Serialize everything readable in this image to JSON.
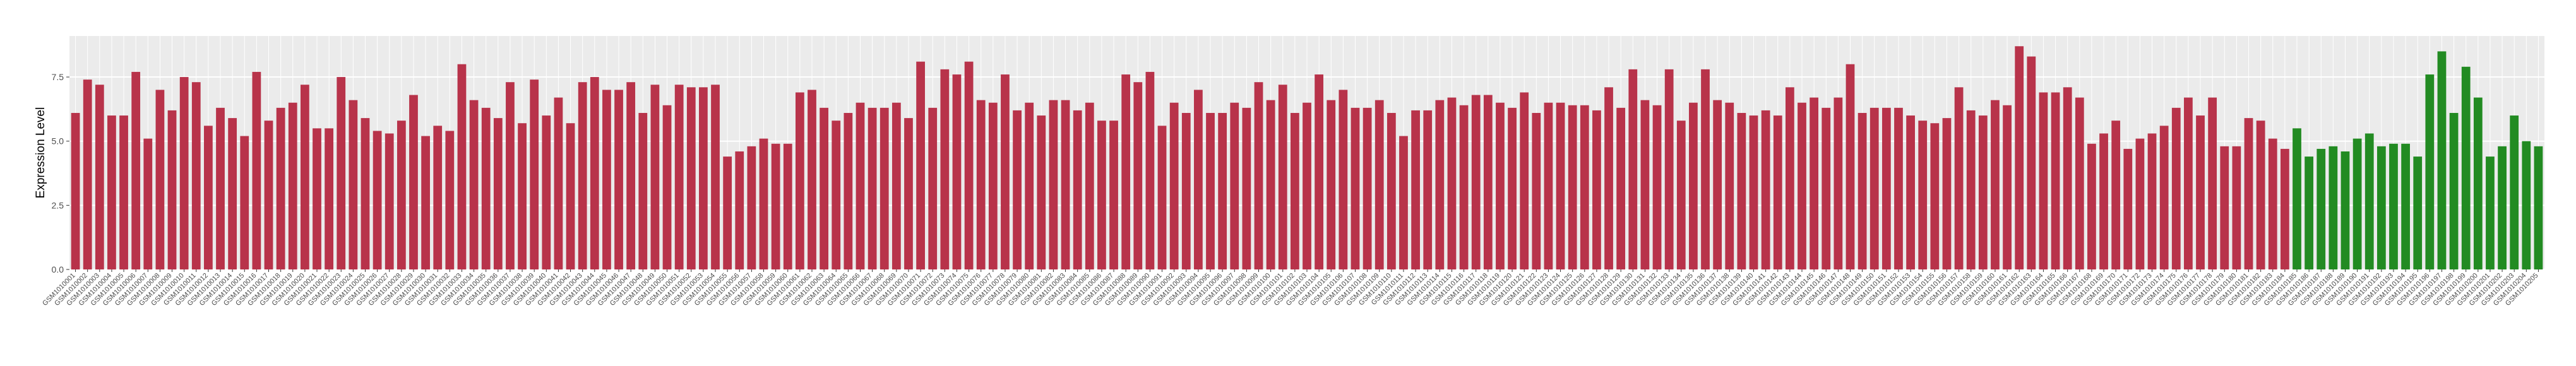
{
  "chart_data": {
    "type": "bar",
    "y_label": "Expression Level",
    "ylim": [
      0,
      9.1
    ],
    "yticks": [
      {
        "value": 0,
        "label": "0.0"
      },
      2.5,
      {
        "value": 5,
        "label": "5.0"
      },
      7.5
    ],
    "grid": true,
    "panel_color": "#ebebeb",
    "categories": [
      "GSM1010001",
      "GSM1010002",
      "GSM1010003",
      "GSM1010004",
      "GSM1010005",
      "GSM1010006",
      "GSM1010007",
      "GSM1010008",
      "GSM1010009",
      "GSM1010010",
      "GSM1010011",
      "GSM1010012",
      "GSM1010013",
      "GSM1010014",
      "GSM1010015",
      "GSM1010016",
      "GSM1010017",
      "GSM1010018",
      "GSM1010019",
      "GSM1010020",
      "GSM1010021",
      "GSM1010022",
      "GSM1010023",
      "GSM1010024",
      "GSM1010025",
      "GSM1010026",
      "GSM1010027",
      "GSM1010028",
      "GSM1010029",
      "GSM1010030",
      "GSM1010031",
      "GSM1010032",
      "GSM1010033",
      "GSM1010034",
      "GSM1010035",
      "GSM1010036",
      "GSM1010037",
      "GSM1010038",
      "GSM1010039",
      "GSM1010040",
      "GSM1010041",
      "GSM1010042",
      "GSM1010043",
      "GSM1010044",
      "GSM1010045",
      "GSM1010046",
      "GSM1010047",
      "GSM1010048",
      "GSM1010049",
      "GSM1010050",
      "GSM1010051",
      "GSM1010052",
      "GSM1010053",
      "GSM1010054",
      "GSM1010055",
      "GSM1010056",
      "GSM1010057",
      "GSM1010058",
      "GSM1010059",
      "GSM1010060",
      "GSM1010061",
      "GSM1010062",
      "GSM1010063",
      "GSM1010064",
      "GSM1010065",
      "GSM1010066",
      "GSM1010067",
      "GSM1010068",
      "GSM1010069",
      "GSM1010070",
      "GSM1010071",
      "GSM1010072",
      "GSM1010073",
      "GSM1010074",
      "GSM1010075",
      "GSM1010076",
      "GSM1010077",
      "GSM1010078",
      "GSM1010079",
      "GSM1010080",
      "GSM1010081",
      "GSM1010082",
      "GSM1010083",
      "GSM1010084",
      "GSM1010085",
      "GSM1010086",
      "GSM1010087",
      "GSM1010088",
      "GSM1010089",
      "GSM1010090",
      "GSM1010091",
      "GSM1010092",
      "GSM1010093",
      "GSM1010094",
      "GSM1010095",
      "GSM1010096",
      "GSM1010097",
      "GSM1010098",
      "GSM1010099",
      "GSM1010100",
      "GSM1010101",
      "GSM1010102",
      "GSM1010103",
      "GSM1010104",
      "GSM1010105",
      "GSM1010106",
      "GSM1010107",
      "GSM1010108",
      "GSM1010109",
      "GSM1010110",
      "GSM1010111",
      "GSM1010112",
      "GSM1010113",
      "GSM1010114",
      "GSM1010115",
      "GSM1010116",
      "GSM1010117",
      "GSM1010118",
      "GSM1010119",
      "GSM1010120",
      "GSM1010121",
      "GSM1010122",
      "GSM1010123",
      "GSM1010124",
      "GSM1010125",
      "GSM1010126",
      "GSM1010127",
      "GSM1010128",
      "GSM1010129",
      "GSM1010130",
      "GSM1010131",
      "GSM1010132",
      "GSM1010133",
      "GSM1010134",
      "GSM1010135",
      "GSM1010136",
      "GSM1010137",
      "GSM1010138",
      "GSM1010139",
      "GSM1010140",
      "GSM1010141",
      "GSM1010142",
      "GSM1010143",
      "GSM1010144",
      "GSM1010145",
      "GSM1010146",
      "GSM1010147",
      "GSM1010148",
      "GSM1010149",
      "GSM1010150",
      "GSM1010151",
      "GSM1010152",
      "GSM1010153",
      "GSM1010154",
      "GSM1010155",
      "GSM1010156",
      "GSM1010157",
      "GSM1010158",
      "GSM1010159",
      "GSM1010160",
      "GSM1010161",
      "GSM1010162",
      "GSM1010163",
      "GSM1010164",
      "GSM1010165",
      "GSM1010166",
      "GSM1010167",
      "GSM1010168",
      "GSM1010169",
      "GSM1010170",
      "GSM1010171",
      "GSM1010172",
      "GSM1010173",
      "GSM1010174",
      "GSM1010175",
      "GSM1010176",
      "GSM1010177",
      "GSM1010178",
      "GSM1010179",
      "GSM1010180",
      "GSM1010181",
      "GSM1010182",
      "GSM1010183",
      "GSM1010184",
      "GSM1010185",
      "GSM1010186",
      "GSM1010187",
      "GSM1010188",
      "GSM1010189",
      "GSM1010190",
      "GSM1010191",
      "GSM1010192",
      "GSM1010193",
      "GSM1010194",
      "GSM1010195",
      "GSM1010196",
      "GSM1010197",
      "GSM1010198",
      "GSM1010199",
      "GSM1010200",
      "GSM1010201",
      "GSM1010202",
      "GSM1010203",
      "GSM1010204",
      "GSM1010205"
    ],
    "values": [
      6.1,
      7.4,
      7.2,
      6.0,
      6.0,
      7.7,
      5.1,
      7.0,
      6.2,
      7.5,
      7.3,
      5.6,
      6.3,
      5.9,
      5.2,
      7.7,
      5.8,
      6.3,
      6.5,
      7.2,
      5.5,
      5.5,
      7.5,
      6.6,
      5.9,
      5.4,
      5.3,
      5.8,
      6.8,
      5.2,
      5.6,
      5.4,
      8.0,
      6.6,
      6.3,
      5.9,
      7.3,
      5.7,
      7.4,
      6.0,
      6.7,
      5.7,
      7.3,
      7.5,
      7.0,
      7.0,
      7.3,
      6.1,
      7.2,
      6.4,
      7.2,
      7.1,
      7.1,
      7.2,
      4.4,
      4.6,
      4.8,
      5.1,
      4.9,
      4.9,
      6.9,
      7.0,
      6.3,
      5.8,
      6.1,
      6.5,
      6.3,
      6.3,
      6.5,
      5.9,
      8.1,
      6.3,
      7.8,
      7.6,
      8.1,
      6.6,
      6.5,
      7.6,
      6.2,
      6.5,
      6.0,
      6.6,
      6.6,
      6.2,
      6.5,
      5.8,
      5.8,
      7.6,
      7.3,
      7.7,
      5.6,
      6.5,
      6.1,
      7.0,
      6.1,
      6.1,
      6.5,
      6.3,
      7.3,
      6.6,
      7.2,
      6.1,
      6.5,
      7.6,
      6.6,
      7.0,
      6.3,
      6.3,
      6.6,
      6.1,
      5.2,
      6.2,
      6.2,
      6.6,
      6.7,
      6.4,
      6.8,
      6.8,
      6.5,
      6.3,
      6.9,
      6.1,
      6.5,
      6.5,
      6.4,
      6.4,
      6.2,
      7.1,
      6.3,
      7.8,
      6.6,
      6.4,
      7.8,
      5.8,
      6.5,
      7.8,
      6.6,
      6.5,
      6.1,
      6.0,
      6.2,
      6.0,
      7.1,
      6.5,
      6.7,
      6.3,
      6.7,
      8.0,
      6.1,
      6.3,
      6.3,
      6.3,
      6.0,
      5.8,
      5.7,
      5.9,
      7.1,
      6.2,
      6.0,
      6.6,
      6.4,
      8.7,
      8.3,
      6.9,
      6.9,
      7.1,
      6.7,
      4.9,
      5.3,
      5.8,
      4.7,
      5.1,
      5.3,
      5.6,
      6.3,
      6.7,
      6.0,
      6.7,
      4.8,
      4.8,
      5.9,
      5.8,
      5.1,
      4.7,
      5.5,
      4.4,
      4.7,
      4.8,
      4.6,
      5.1,
      5.3,
      4.8,
      4.9,
      4.9,
      4.4,
      7.6,
      8.5,
      6.1,
      7.9,
      6.7,
      4.4,
      4.8,
      6.0,
      5.0,
      4.8
    ],
    "colors": [
      "#b8334a",
      "#b8334a",
      "#b8334a",
      "#b8334a",
      "#b8334a",
      "#b8334a",
      "#b8334a",
      "#b8334a",
      "#b8334a",
      "#b8334a",
      "#b8334a",
      "#b8334a",
      "#b8334a",
      "#b8334a",
      "#b8334a",
      "#b8334a",
      "#b8334a",
      "#b8334a",
      "#b8334a",
      "#b8334a",
      "#b8334a",
      "#b8334a",
      "#b8334a",
      "#b8334a",
      "#b8334a",
      "#b8334a",
      "#b8334a",
      "#b8334a",
      "#b8334a",
      "#b8334a",
      "#b8334a",
      "#b8334a",
      "#b8334a",
      "#b8334a",
      "#b8334a",
      "#b8334a",
      "#b8334a",
      "#b8334a",
      "#b8334a",
      "#b8334a",
      "#b8334a",
      "#b8334a",
      "#b8334a",
      "#b8334a",
      "#b8334a",
      "#b8334a",
      "#b8334a",
      "#b8334a",
      "#b8334a",
      "#b8334a",
      "#b8334a",
      "#b8334a",
      "#b8334a",
      "#b8334a",
      "#b8334a",
      "#b8334a",
      "#b8334a",
      "#b8334a",
      "#b8334a",
      "#b8334a",
      "#b8334a",
      "#b8334a",
      "#b8334a",
      "#b8334a",
      "#b8334a",
      "#b8334a",
      "#b8334a",
      "#b8334a",
      "#b8334a",
      "#b8334a",
      "#b8334a",
      "#b8334a",
      "#b8334a",
      "#b8334a",
      "#b8334a",
      "#b8334a",
      "#b8334a",
      "#b8334a",
      "#b8334a",
      "#b8334a",
      "#b8334a",
      "#b8334a",
      "#b8334a",
      "#b8334a",
      "#b8334a",
      "#b8334a",
      "#b8334a",
      "#b8334a",
      "#b8334a",
      "#b8334a",
      "#b8334a",
      "#b8334a",
      "#b8334a",
      "#b8334a",
      "#b8334a",
      "#b8334a",
      "#b8334a",
      "#b8334a",
      "#b8334a",
      "#b8334a",
      "#b8334a",
      "#b8334a",
      "#b8334a",
      "#b8334a",
      "#b8334a",
      "#b8334a",
      "#b8334a",
      "#b8334a",
      "#b8334a",
      "#b8334a",
      "#b8334a",
      "#b8334a",
      "#b8334a",
      "#b8334a",
      "#b8334a",
      "#b8334a",
      "#b8334a",
      "#b8334a",
      "#b8334a",
      "#b8334a",
      "#b8334a",
      "#b8334a",
      "#b8334a",
      "#b8334a",
      "#b8334a",
      "#b8334a",
      "#b8334a",
      "#b8334a",
      "#b8334a",
      "#b8334a",
      "#b8334a",
      "#b8334a",
      "#b8334a",
      "#b8334a",
      "#b8334a",
      "#b8334a",
      "#b8334a",
      "#b8334a",
      "#b8334a",
      "#b8334a",
      "#b8334a",
      "#b8334a",
      "#b8334a",
      "#b8334a",
      "#b8334a",
      "#b8334a",
      "#b8334a",
      "#b8334a",
      "#b8334a",
      "#b8334a",
      "#b8334a",
      "#b8334a",
      "#b8334a",
      "#b8334a",
      "#b8334a",
      "#b8334a",
      "#b8334a",
      "#b8334a",
      "#b8334a",
      "#b8334a",
      "#b8334a",
      "#b8334a",
      "#b8334a",
      "#b8334a",
      "#b8334a",
      "#b8334a",
      "#b8334a",
      "#b8334a",
      "#b8334a",
      "#b8334a",
      "#b8334a",
      "#b8334a",
      "#b8334a",
      "#b8334a",
      "#b8334a",
      "#b8334a",
      "#b8334a",
      "#b8334a",
      "#b8334a",
      "#b8334a",
      "#b8334a",
      "#b8334a",
      "#b8334a",
      "#b8334a",
      "#228b22",
      "#228b22",
      "#228b22",
      "#228b22",
      "#228b22",
      "#228b22",
      "#228b22",
      "#228b22",
      "#228b22",
      "#228b22",
      "#228b22",
      "#228b22",
      "#228b22",
      "#228b22",
      "#228b22",
      "#228b22",
      "#228b22",
      "#228b22",
      "#228b22",
      "#228b22",
      "#228b22"
    ]
  }
}
